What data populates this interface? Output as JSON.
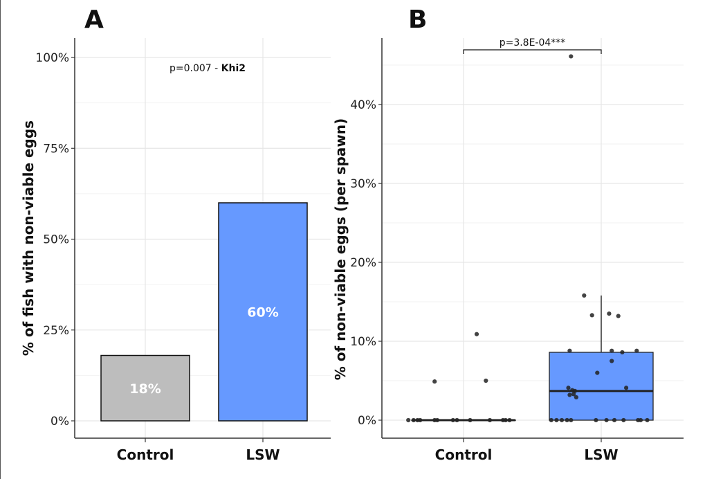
{
  "colors": {
    "control_bar": "#bdbdbd",
    "lsw_bar": "#6699ff",
    "box_fill": "#6699ff",
    "grid_major": "#e6e6e6",
    "grid_minor": "#f2f2f2",
    "axis": "#333333",
    "point": "#222222"
  },
  "chart_data": [
    {
      "type": "bar",
      "panel_label": "A",
      "categories": [
        "Control",
        "LSW"
      ],
      "values": [
        18,
        60
      ],
      "value_labels": [
        "18%",
        "60%"
      ],
      "ylabel": "% of fish with non-viable eggs",
      "xlabel": "",
      "ylim": [
        0,
        100
      ],
      "yticks": [
        0,
        25,
        50,
        75,
        100
      ],
      "ytick_labels": [
        "0%",
        "25%",
        "50%",
        "75%",
        "100%"
      ],
      "annotation": {
        "prefix": "p=0.007  -  ",
        "test": "Khi2"
      },
      "grid": true
    },
    {
      "type": "boxplot",
      "panel_label": "B",
      "categories": [
        "Control",
        "LSW"
      ],
      "ylabel": "% of non-viable eggs (per spawn)",
      "xlabel": "",
      "ylim": [
        0,
        46
      ],
      "yticks": [
        0,
        10,
        20,
        30,
        40
      ],
      "ytick_labels": [
        "0%",
        "10%",
        "20%",
        "30%",
        "40%"
      ],
      "grid": true,
      "boxes": [
        {
          "group": "Control",
          "q1": 0,
          "median": 0,
          "q3": 0,
          "whisker_low": 0,
          "whisker_high": 0
        },
        {
          "group": "LSW",
          "q1": 0,
          "median": 3.7,
          "q3": 8.6,
          "whisker_low": 0,
          "whisker_high": 15.8
        }
      ],
      "points": {
        "Control": [
          {
            "x": -0.42,
            "y": 0
          },
          {
            "x": -0.38,
            "y": 0
          },
          {
            "x": -0.35,
            "y": 0
          },
          {
            "x": -0.33,
            "y": 0
          },
          {
            "x": -0.22,
            "y": 0
          },
          {
            "x": -0.2,
            "y": 0
          },
          {
            "x": -0.08,
            "y": 0
          },
          {
            "x": -0.05,
            "y": 0
          },
          {
            "x": 0.05,
            "y": 0
          },
          {
            "x": 0.2,
            "y": 0
          },
          {
            "x": 0.3,
            "y": 0
          },
          {
            "x": 0.32,
            "y": 0
          },
          {
            "x": 0.35,
            "y": 0
          },
          {
            "x": -0.22,
            "y": 4.9
          },
          {
            "x": 0.17,
            "y": 5.0
          },
          {
            "x": 0.1,
            "y": 10.9
          }
        ],
        "LSW": [
          {
            "x": -0.38,
            "y": 0
          },
          {
            "x": -0.34,
            "y": 0
          },
          {
            "x": -0.3,
            "y": 0
          },
          {
            "x": -0.26,
            "y": 0
          },
          {
            "x": -0.23,
            "y": 0
          },
          {
            "x": -0.04,
            "y": 0
          },
          {
            "x": 0.04,
            "y": 0
          },
          {
            "x": 0.1,
            "y": 0
          },
          {
            "x": 0.17,
            "y": 0
          },
          {
            "x": 0.28,
            "y": 0
          },
          {
            "x": 0.3,
            "y": 0
          },
          {
            "x": 0.35,
            "y": 0
          },
          {
            "x": -0.25,
            "y": 4.1
          },
          {
            "x": -0.22,
            "y": 3.8
          },
          {
            "x": -0.2,
            "y": 3.7
          },
          {
            "x": -0.24,
            "y": 3.2
          },
          {
            "x": -0.21,
            "y": 3.3
          },
          {
            "x": -0.19,
            "y": 2.9
          },
          {
            "x": 0.19,
            "y": 4.1
          },
          {
            "x": -0.03,
            "y": 6.0
          },
          {
            "x": -0.24,
            "y": 8.8
          },
          {
            "x": 0.08,
            "y": 8.8
          },
          {
            "x": 0.16,
            "y": 8.6
          },
          {
            "x": 0.27,
            "y": 8.8
          },
          {
            "x": 0.08,
            "y": 7.5
          },
          {
            "x": -0.13,
            "y": 15.8
          },
          {
            "x": -0.07,
            "y": 13.3
          },
          {
            "x": 0.06,
            "y": 13.5
          },
          {
            "x": 0.13,
            "y": 13.2
          },
          {
            "x": -0.23,
            "y": 46.1
          }
        ]
      },
      "significance": {
        "label": "p=3.8E-04***",
        "from": "Control",
        "to": "LSW"
      }
    }
  ]
}
